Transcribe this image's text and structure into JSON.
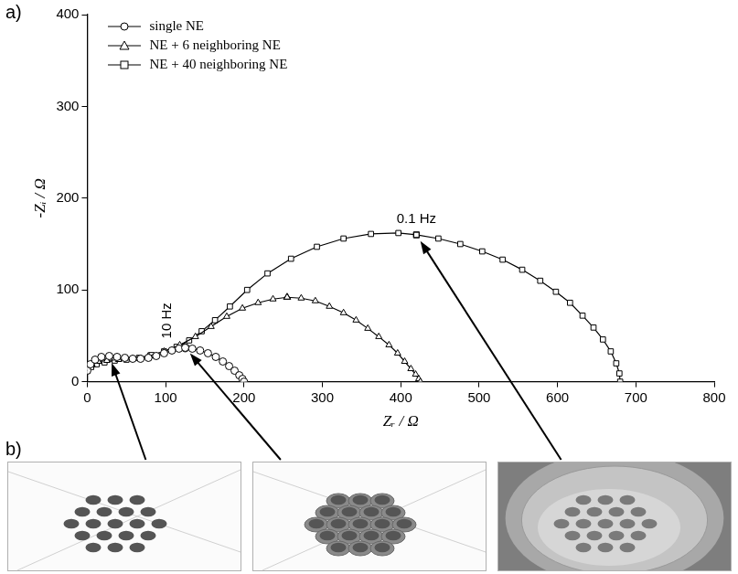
{
  "panel_labels": [
    "a)",
    "b)"
  ],
  "chart_data": {
    "type": "line",
    "x_label": "Zᵣ / Ω",
    "y_label": "-Zᵢ / Ω",
    "xlim": [
      0,
      800
    ],
    "xticks": [
      0,
      100,
      200,
      300,
      400,
      500,
      600,
      700,
      800
    ],
    "ylim": [
      0,
      400
    ],
    "yticks": [
      0,
      100,
      200,
      300,
      400
    ],
    "grid": false,
    "legend": "upper left",
    "series": [
      {
        "name": "single NE",
        "color": "#000000",
        "marker": "circle",
        "line_style": "solid",
        "x": [
          0,
          4,
          10,
          18,
          28,
          38,
          48,
          58,
          68,
          78,
          88,
          98,
          108,
          117,
          125,
          134,
          144,
          154,
          164,
          173,
          181,
          188,
          194,
          198,
          200
        ],
        "values": [
          12,
          19,
          24,
          27,
          28,
          27,
          26,
          25,
          25,
          26,
          28,
          31,
          34,
          36,
          37,
          36,
          34,
          31,
          27,
          22,
          17,
          12,
          7,
          3,
          0
        ],
        "marked": [
          125,
          37
        ]
      },
      {
        "name": "NE + 6 neighboring NE",
        "color": "#000000",
        "marker": "triangle",
        "line_style": "solid",
        "x": [
          0,
          6,
          14,
          25,
          40,
          58,
          78,
          98,
          118,
          138,
          158,
          178,
          198,
          218,
          237,
          255,
          273,
          291,
          309,
          327,
          343,
          358,
          372,
          385,
          396,
          405,
          413,
          419,
          423,
          425
        ],
        "values": [
          14,
          19,
          22,
          23,
          24,
          25,
          28,
          33,
          40,
          49,
          60,
          71,
          80,
          86,
          90,
          92,
          91,
          88,
          82,
          75,
          67,
          58,
          49,
          40,
          31,
          22,
          14,
          8,
          3,
          0
        ],
        "marked": [
          255,
          92
        ]
      },
      {
        "name": "NE + 40 neighboring NE",
        "color": "#000000",
        "marker": "square",
        "line_style": "solid",
        "x": [
          0,
          5,
          12,
          22,
          35,
          50,
          66,
          82,
          98,
          114,
          130,
          146,
          163,
          182,
          204,
          230,
          260,
          293,
          327,
          362,
          397,
          420,
          448,
          476,
          504,
          530,
          555,
          578,
          598,
          616,
          632,
          646,
          658,
          668,
          675,
          679,
          680
        ],
        "values": [
          12,
          16,
          19,
          21,
          23,
          24,
          26,
          29,
          33,
          38,
          45,
          55,
          67,
          82,
          100,
          118,
          134,
          147,
          156,
          161,
          162,
          160,
          156,
          150,
          142,
          133,
          122,
          110,
          98,
          86,
          72,
          59,
          46,
          33,
          20,
          9,
          0
        ],
        "marked": [
          420,
          160
        ]
      }
    ],
    "annotations": [
      {
        "text": "10 Hz",
        "x": 125,
        "y": 37
      },
      {
        "text": "0.1 Hz",
        "x": 420,
        "y": 160
      }
    ]
  }
}
